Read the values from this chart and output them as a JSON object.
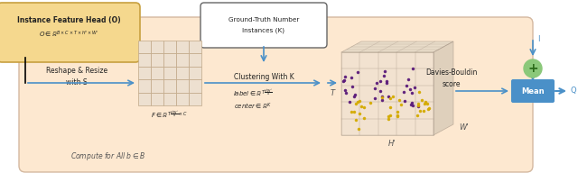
{
  "bg_color": "#fde8d0",
  "fig_bg": "#ffffff",
  "arrow_color": "#4a90c8",
  "mean_box_color": "#4a90c8",
  "plus_circle_color": "#8bc87a",
  "top_left_box_color": "#f5d88e",
  "top_left_edge_color": "#c8a040",
  "reshape_text": "Reshape & Resize\nwith S",
  "cluster_text": "Clustering With K",
  "db_text": "Davies-Bouldin\nscore",
  "mean_text": "Mean",
  "compute_text": "Compute for All $b \\in B$",
  "I_label": "I",
  "Q_label": "Q"
}
